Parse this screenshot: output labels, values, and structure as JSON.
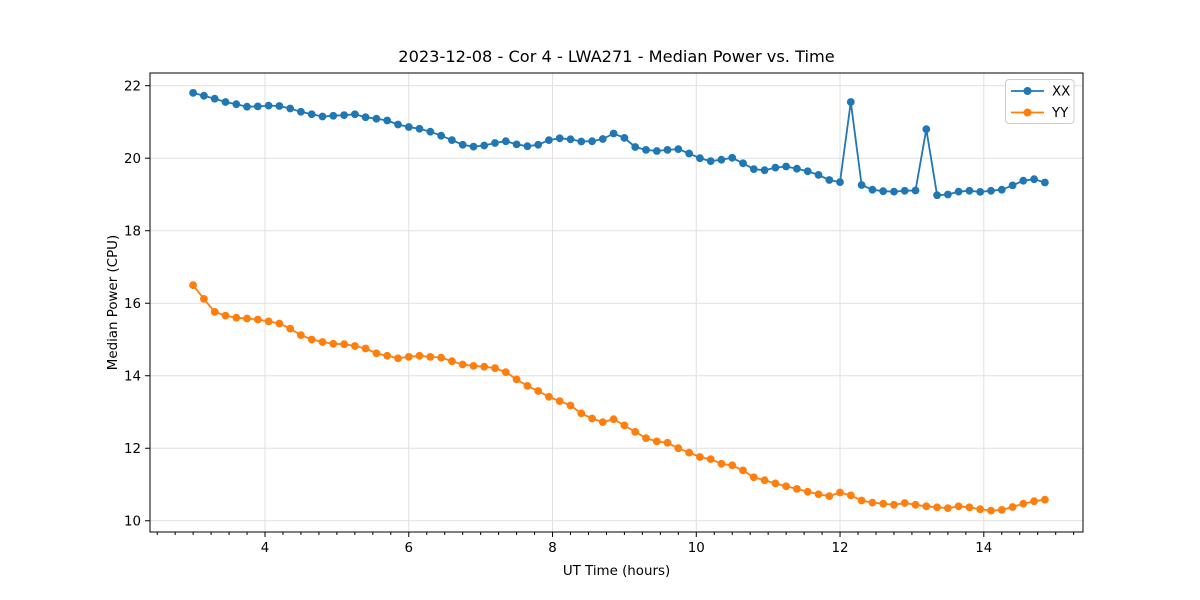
{
  "chart_data": {
    "type": "line",
    "title": "2023-12-08 - Cor 4 - LWA271 - Median Power vs. Time",
    "xlabel": "UT Time (hours)",
    "ylabel": "Median Power (CPU)",
    "xlim": [
      2.4,
      15.38
    ],
    "ylim": [
      9.69,
      22.35
    ],
    "xticks": [
      4,
      6,
      8,
      10,
      12,
      14
    ],
    "yticks": [
      10,
      12,
      14,
      16,
      18,
      20,
      22
    ],
    "x_minor_tick_step": 0.25,
    "grid": "major",
    "grid_color": "#e0e0e0",
    "background_color": "#ffffff",
    "spine_color": "#000000",
    "legend": {
      "position": "upper right",
      "entries": [
        "XX",
        "YY"
      ]
    },
    "x": [
      3.0,
      3.15,
      3.3,
      3.45,
      3.6,
      3.75,
      3.9,
      4.05,
      4.2,
      4.35,
      4.5,
      4.65,
      4.8,
      4.95,
      5.1,
      5.25,
      5.4,
      5.55,
      5.7,
      5.85,
      6.0,
      6.15,
      6.3,
      6.45,
      6.6,
      6.75,
      6.9,
      7.05,
      7.2,
      7.35,
      7.5,
      7.65,
      7.8,
      7.95,
      8.1,
      8.25,
      8.4,
      8.55,
      8.7,
      8.85,
      9.0,
      9.15,
      9.3,
      9.45,
      9.6,
      9.75,
      9.9,
      10.05,
      10.2,
      10.35,
      10.5,
      10.65,
      10.8,
      10.95,
      11.1,
      11.25,
      11.4,
      11.55,
      11.7,
      11.85,
      12.0,
      12.15,
      12.3,
      12.45,
      12.6,
      12.75,
      12.9,
      13.05,
      13.2,
      13.35,
      13.5,
      13.65,
      13.8,
      13.95,
      14.1,
      14.25,
      14.4,
      14.55,
      14.7,
      14.85
    ],
    "series": [
      {
        "name": "XX",
        "color": "#1f77b4",
        "marker": "circle",
        "values": [
          21.8,
          21.72,
          21.64,
          21.55,
          21.49,
          21.42,
          21.43,
          21.45,
          21.44,
          21.37,
          21.28,
          21.21,
          21.15,
          21.17,
          21.19,
          21.21,
          21.13,
          21.09,
          21.04,
          20.93,
          20.86,
          20.81,
          20.73,
          20.62,
          20.5,
          20.37,
          20.32,
          20.35,
          20.42,
          20.47,
          20.38,
          20.33,
          20.37,
          20.5,
          20.55,
          20.52,
          20.46,
          20.47,
          20.53,
          20.68,
          20.56,
          20.31,
          20.23,
          20.2,
          20.23,
          20.25,
          20.13,
          20.0,
          19.92,
          19.96,
          20.01,
          19.86,
          19.7,
          19.67,
          19.74,
          19.77,
          19.71,
          19.64,
          19.54,
          19.4,
          19.34,
          21.55,
          19.26,
          19.13,
          19.09,
          19.08,
          19.1,
          19.11,
          20.8,
          18.98,
          19.0,
          19.08,
          19.1,
          19.07,
          19.1,
          19.13,
          19.25,
          19.38,
          19.42,
          19.33
        ]
      },
      {
        "name": "YY",
        "color": "#ff7f0e",
        "marker": "circle",
        "values": [
          16.5,
          16.12,
          15.76,
          15.66,
          15.6,
          15.58,
          15.55,
          15.5,
          15.44,
          15.3,
          15.12,
          15.0,
          14.93,
          14.88,
          14.87,
          14.82,
          14.75,
          14.62,
          14.55,
          14.48,
          14.52,
          14.55,
          14.52,
          14.5,
          14.4,
          14.31,
          14.27,
          14.25,
          14.21,
          14.1,
          13.9,
          13.72,
          13.58,
          13.42,
          13.3,
          13.18,
          12.96,
          12.82,
          12.72,
          12.8,
          12.63,
          12.45,
          12.28,
          12.19,
          12.15,
          12.0,
          11.88,
          11.76,
          11.7,
          11.57,
          11.53,
          11.39,
          11.2,
          11.12,
          11.03,
          10.95,
          10.88,
          10.8,
          10.73,
          10.68,
          10.78,
          10.7,
          10.56,
          10.5,
          10.47,
          10.44,
          10.49,
          10.44,
          10.4,
          10.37,
          10.35,
          10.4,
          10.37,
          10.32,
          10.28,
          10.3,
          10.38,
          10.47,
          10.54,
          10.58
        ]
      }
    ]
  }
}
